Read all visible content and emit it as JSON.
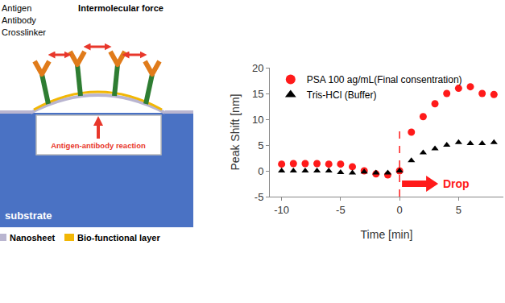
{
  "chart_data": {
    "type": "scatter",
    "x_label": "Time [min]",
    "y_label": "Peak Shift [nm]",
    "x": [
      -10,
      -9,
      -8,
      -7,
      -6,
      -5,
      -4,
      -3,
      -2,
      -1,
      0,
      1,
      2,
      3,
      4,
      5,
      6,
      7,
      8
    ],
    "series": [
      {
        "name": "PSA 100 ag/mL(Final consentration)",
        "color": "#ff1a1a",
        "marker": "circle",
        "values": [
          1.3,
          1.4,
          1.4,
          1.4,
          1.3,
          1.3,
          0.8,
          0,
          -0.6,
          -0.8,
          0,
          7.5,
          10.5,
          13,
          15,
          16,
          16.3,
          15,
          14.8
        ]
      },
      {
        "name": "Tris-HCl (Buffer)",
        "color": "#000000",
        "marker": "triangle-up",
        "values": [
          0,
          0,
          0,
          0,
          0,
          -0.3,
          -0.4,
          -0.2,
          -0.4,
          -0.4,
          0,
          2,
          3.5,
          4.3,
          5,
          5.5,
          5.3,
          5.3,
          5.5
        ]
      }
    ],
    "xlim": [
      -11,
      8.8
    ],
    "xticks": [
      -10,
      -5,
      0,
      5
    ],
    "ylim": [
      -5,
      20
    ],
    "yticks": [
      -5,
      0,
      5,
      10,
      15,
      20
    ],
    "grid": false,
    "legend": "upper left",
    "annotations": [
      {
        "x": 0,
        "text": "Drop",
        "color": "#ff1a1a"
      }
    ]
  },
  "diagram": {
    "labels": {
      "antigen": "Antigen",
      "antibody": "Antibody",
      "crosslinker": "Crosslinker",
      "force": "Intermolecular force",
      "reaction": "Antigen-antibody reaction",
      "substrate": "substrate"
    },
    "legend": [
      {
        "label": "Nanosheet",
        "color": "#b9b5d0"
      },
      {
        "label": "Bio-functional layer",
        "color": "#f2b705"
      }
    ]
  }
}
